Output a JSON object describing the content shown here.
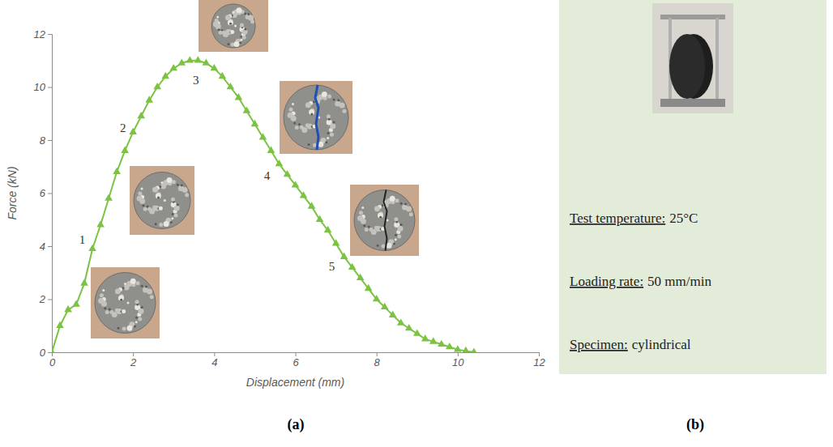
{
  "chart_data": {
    "type": "line",
    "x_label": "Displacement (mm)",
    "y_label": "Force (kN)",
    "x": [
      0,
      0.2,
      0.4,
      0.6,
      0.8,
      1.0,
      1.2,
      1.4,
      1.6,
      1.8,
      2.0,
      2.2,
      2.4,
      2.6,
      2.8,
      3.0,
      3.2,
      3.4,
      3.6,
      3.8,
      4.0,
      4.2,
      4.4,
      4.6,
      4.8,
      5.0,
      5.2,
      5.4,
      5.6,
      5.8,
      6.0,
      6.2,
      6.4,
      6.6,
      6.8,
      7.0,
      7.2,
      7.4,
      7.6,
      7.8,
      8.0,
      8.2,
      8.4,
      8.6,
      8.8,
      9.0,
      9.2,
      9.4,
      9.6,
      9.8,
      10.0,
      10.2,
      10.4
    ],
    "values": [
      0,
      1.0,
      1.6,
      1.8,
      2.6,
      3.9,
      4.8,
      5.8,
      6.8,
      7.6,
      8.3,
      8.9,
      9.5,
      10.0,
      10.4,
      10.7,
      10.9,
      11.0,
      11.0,
      10.9,
      10.7,
      10.4,
      10.0,
      9.6,
      9.1,
      8.6,
      8.1,
      7.6,
      7.1,
      6.7,
      6.3,
      5.9,
      5.5,
      5.0,
      4.6,
      4.1,
      3.6,
      3.2,
      2.8,
      2.4,
      2.0,
      1.7,
      1.4,
      1.1,
      0.9,
      0.7,
      0.5,
      0.4,
      0.3,
      0.2,
      0.1,
      0.05,
      0
    ],
    "color": "#7cc243",
    "marker": "triangle",
    "line_style": "solid",
    "xlim": [
      0,
      12
    ],
    "xticks": [
      0,
      2,
      4,
      6,
      8,
      10,
      12
    ],
    "ylim": [
      0,
      12
    ],
    "yticks": [
      0,
      2,
      4,
      6,
      8,
      10,
      12
    ],
    "grid": false,
    "annotations": [
      {
        "text": "1",
        "x": 0.75,
        "y": 4.2
      },
      {
        "text": "2",
        "x": 1.75,
        "y": 8.4
      },
      {
        "text": "3",
        "x": 3.55,
        "y": 10.2
      },
      {
        "text": "4",
        "x": 5.3,
        "y": 6.6
      },
      {
        "text": "5",
        "x": 6.9,
        "y": 3.2
      }
    ]
  },
  "panel_labels": {
    "a": "(a)",
    "b": "(b)"
  },
  "test_conditions": [
    {
      "label": "Test temperature:",
      "value": "25°C"
    },
    {
      "label": "Loading rate:",
      "value": "50 mm/min"
    },
    {
      "label": "Specimen:",
      "value": "cylindrical"
    }
  ]
}
